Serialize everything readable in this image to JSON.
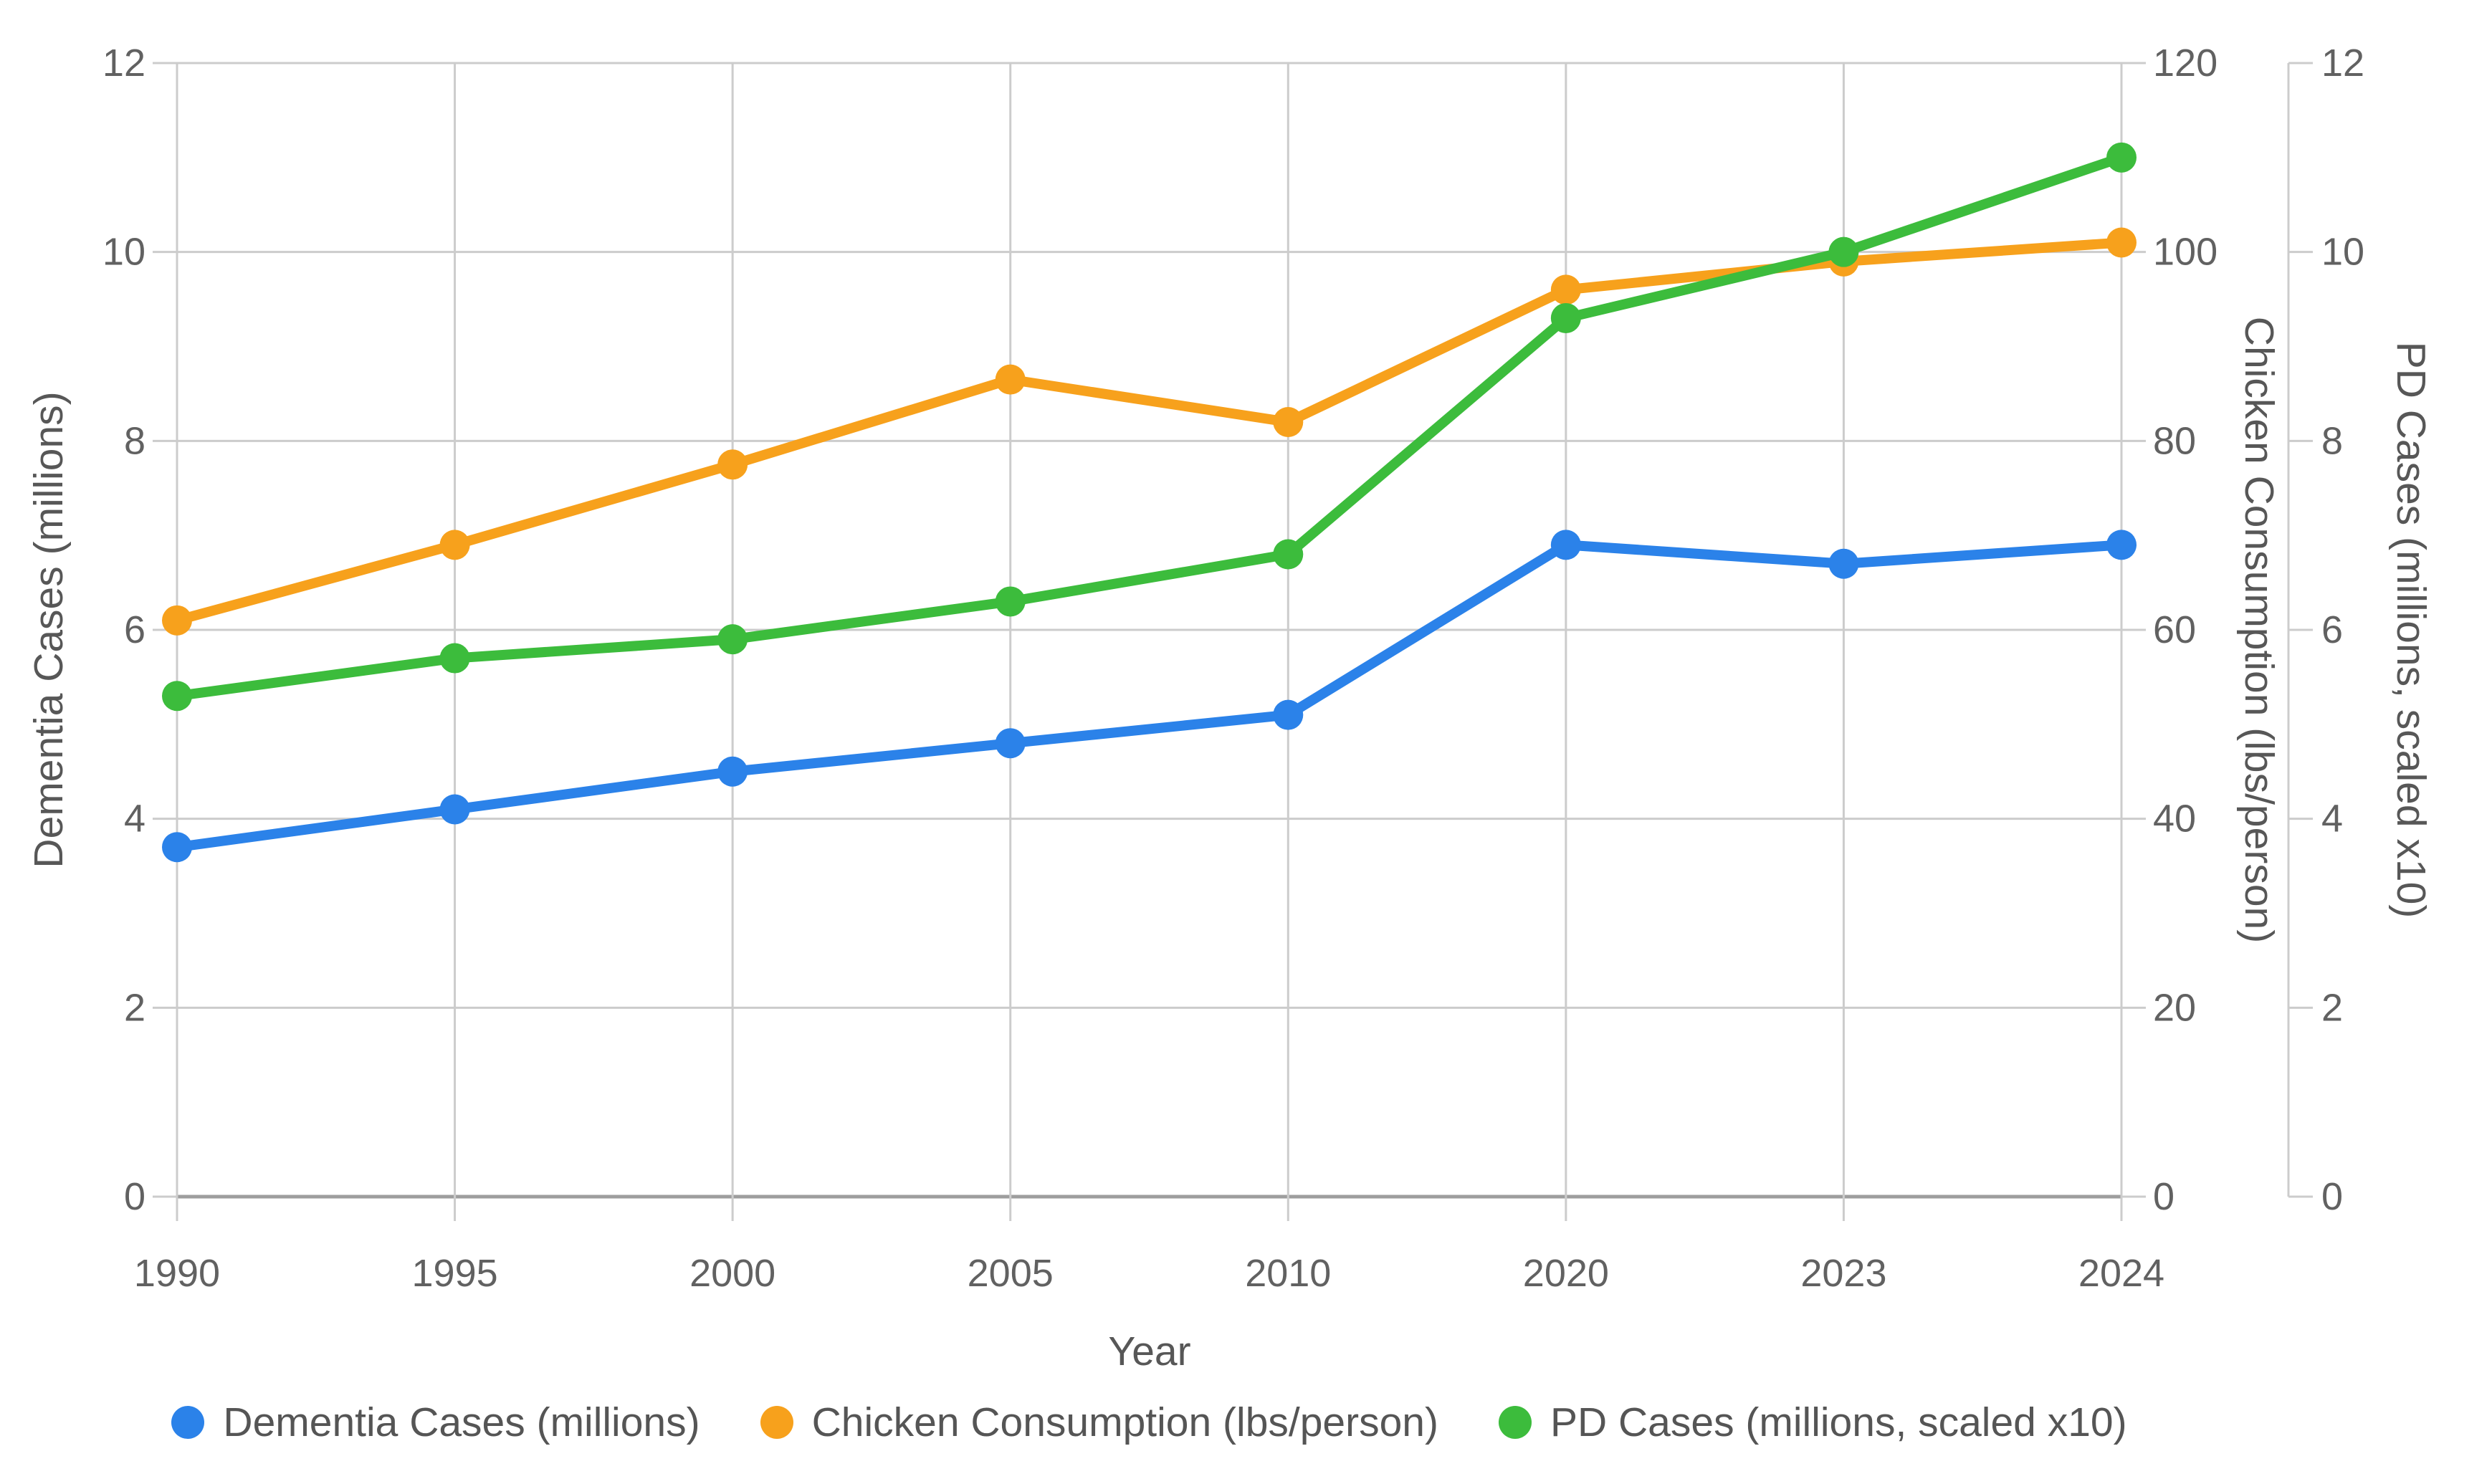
{
  "chart_data": {
    "type": "line",
    "categories": [
      "1990",
      "1995",
      "2000",
      "2005",
      "2010",
      "2020",
      "2023",
      "2024"
    ],
    "series": [
      {
        "name": "Dementia Cases (millions)",
        "color": "#2B82E9",
        "axis": "left",
        "values": [
          3.7,
          4.1,
          4.5,
          4.8,
          5.1,
          6.9,
          6.7,
          6.9
        ]
      },
      {
        "name": "Chicken Consumption (lbs/person)",
        "color": "#F7A11C",
        "axis": "chicken",
        "values": [
          61,
          69,
          77.5,
          86.5,
          82,
          96,
          99,
          101
        ]
      },
      {
        "name": "PD Cases (millions, scaled x10)",
        "color": "#3CBC3C",
        "axis": "pd",
        "values": [
          5.3,
          5.7,
          5.9,
          6.3,
          6.8,
          9.3,
          10,
          11
        ]
      }
    ],
    "axes": {
      "x": {
        "title": "Year",
        "labels": [
          "1990",
          "1995",
          "2000",
          "2005",
          "2010",
          "2020",
          "2023",
          "2024"
        ]
      },
      "left": {
        "title": "Dementia Cases (millions)",
        "ticks": [
          0,
          2,
          4,
          6,
          8,
          10,
          12
        ],
        "range": [
          0,
          12
        ]
      },
      "chicken": {
        "title": "Chicken Consumption (lbs/person)",
        "ticks": [
          0,
          20,
          40,
          60,
          80,
          100,
          120
        ],
        "range": [
          0,
          120
        ]
      },
      "pd": {
        "title": "PD Cases (millions, scaled x10)",
        "ticks": [
          0,
          2,
          4,
          6,
          8,
          10,
          12
        ],
        "range": [
          0,
          12
        ]
      }
    },
    "grid": true,
    "legend_position": "bottom"
  },
  "style": {
    "grid_color": "#cccccc",
    "baseline_color": "#9e9e9e",
    "tick_text_color": "#616161",
    "axis_title_color": "#575757",
    "legend_text_color": "#555555",
    "background": "#ffffff"
  }
}
